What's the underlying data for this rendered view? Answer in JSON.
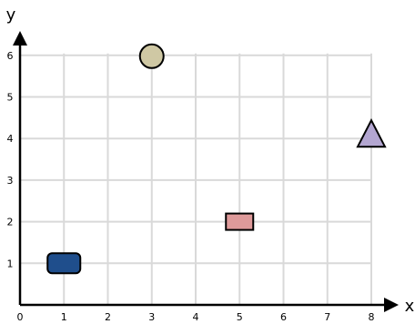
{
  "chart_data": {
    "type": "scatter",
    "xlabel": "x",
    "ylabel": "y",
    "xlim": [
      0,
      8
    ],
    "ylim": [
      0,
      6
    ],
    "xticks": [
      "0",
      "1",
      "2",
      "3",
      "4",
      "5",
      "6",
      "7",
      "8"
    ],
    "yticks": [
      "1",
      "2",
      "3",
      "4",
      "5",
      "6"
    ],
    "grid": true,
    "points": [
      {
        "shape": "rounded-rect",
        "x": 1,
        "y": 1,
        "color": "#1f4e8c"
      },
      {
        "shape": "rect",
        "x": 5,
        "y": 2,
        "color": "#de9a9a"
      },
      {
        "shape": "triangle",
        "x": 8,
        "y": 4,
        "color": "#b3a6d1"
      },
      {
        "shape": "circle",
        "x": 3,
        "y": 6,
        "color": "#cfc8a4"
      }
    ]
  }
}
